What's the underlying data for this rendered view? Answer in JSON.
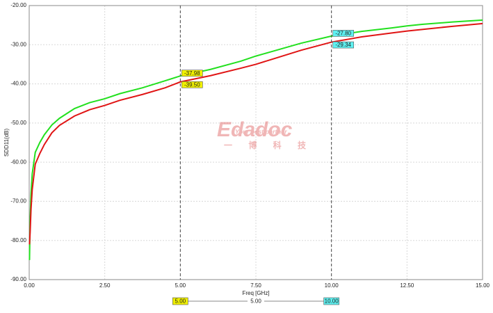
{
  "chart_data": {
    "type": "line",
    "ylabel": "SDD11(dB)",
    "xlabel": "Freq [GHz]",
    "x": [
      0.01,
      0.03,
      0.06,
      0.1,
      0.2,
      0.35,
      0.5,
      0.75,
      1,
      1.5,
      2,
      2.5,
      3,
      3.75,
      4.5,
      5,
      6,
      7,
      7.5,
      8,
      9,
      10,
      11,
      12,
      12.5,
      13,
      14,
      15
    ],
    "series": [
      {
        "color": "#22e01e",
        "values": [
          -85,
          -75,
          -68,
          -63,
          -57.5,
          -55,
          -53,
          -50.5,
          -48.8,
          -46.3,
          -44.8,
          -43.8,
          -42.5,
          -41,
          -39.2,
          -37.98,
          -36.3,
          -34.2,
          -32.9,
          -31.8,
          -29.6,
          -27.8,
          -26.6,
          -25.7,
          -25.2,
          -24.8,
          -24.2,
          -23.7
        ]
      },
      {
        "color": "#e01414",
        "values": [
          -81,
          -78,
          -72,
          -67,
          -60.5,
          -57.8,
          -55.5,
          -52.5,
          -50.6,
          -48.2,
          -46.6,
          -45.5,
          -44.2,
          -42.7,
          -41,
          -39.5,
          -37.9,
          -36,
          -35,
          -33.8,
          -31.4,
          -29.34,
          -28,
          -27,
          -26.5,
          -26.1,
          -25.3,
          -24.6
        ]
      }
    ],
    "xlim": [
      0,
      15
    ],
    "xticks": [
      {
        "value": 0,
        "label": "0.00"
      },
      {
        "value": 2.5,
        "label": "2.50"
      },
      {
        "value": 5,
        "label": "5.00"
      },
      {
        "value": 7.5,
        "label": "7.50"
      },
      {
        "value": 10,
        "label": "10.00"
      },
      {
        "value": 12.5,
        "label": "12.50"
      },
      {
        "value": 15,
        "label": "15.00"
      }
    ],
    "ylim": [
      -90,
      -20
    ],
    "yticks": [
      {
        "value": -20,
        "label": "-20.00"
      },
      {
        "value": -30,
        "label": "-30.00"
      },
      {
        "value": -40,
        "label": "-40.00"
      },
      {
        "value": -50,
        "label": "-50.00"
      },
      {
        "value": -60,
        "label": "-60.00"
      },
      {
        "value": -70,
        "label": "-70.00"
      },
      {
        "value": -80,
        "label": "-80.00"
      },
      {
        "value": -90,
        "label": "-90.00"
      }
    ],
    "grid": true,
    "markers": [
      {
        "x": {
          "value": 5,
          "label": "5.00"
        },
        "color": "#f0f000",
        "values": [
          -37.98,
          -39.5
        ],
        "value_labels": [
          "-37.98",
          "-39.50"
        ]
      },
      {
        "x": {
          "value": 10,
          "label": "10.00"
        },
        "color": "#5ef0f0",
        "values": [
          -27.8,
          -29.34
        ],
        "value_labels": [
          "-27.80",
          "-29.34"
        ]
      }
    ],
    "delta": {
      "value": 5,
      "label": "5.00"
    },
    "watermark": {
      "logo": "Edadoc",
      "tagline": "Your best partner",
      "chinese": "一 博 科 技"
    }
  }
}
